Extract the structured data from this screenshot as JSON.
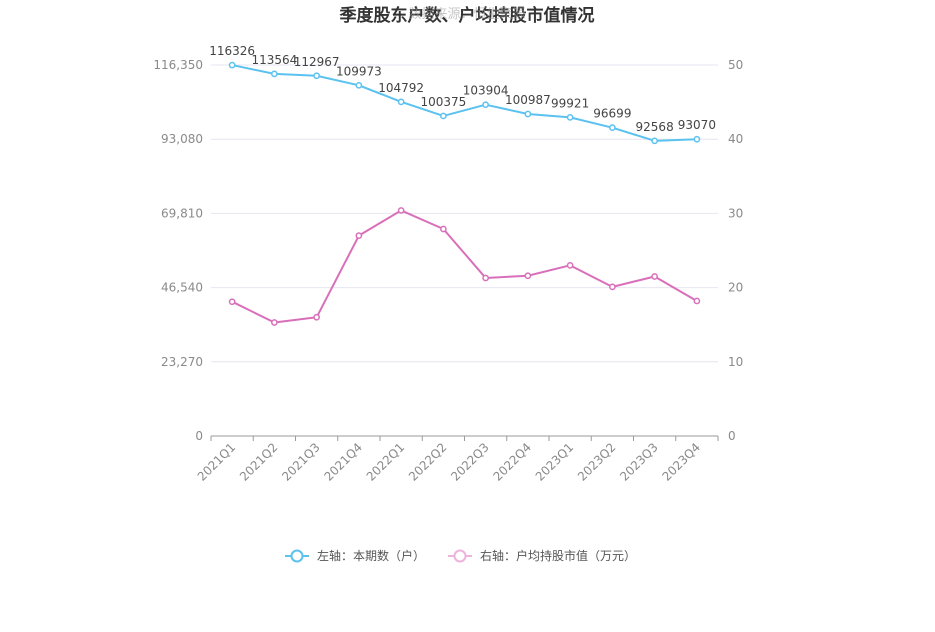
{
  "chart_data": {
    "type": "line",
    "title": "季度股东户数、户均持股市值情况",
    "watermark": "数据来源：恒生聚源",
    "categories": [
      "2021Q1",
      "2021Q2",
      "2021Q3",
      "2021Q4",
      "2022Q1",
      "2022Q2",
      "2022Q3",
      "2022Q4",
      "2023Q1",
      "2023Q2",
      "2023Q3",
      "2023Q4"
    ],
    "left_axis": {
      "ticks": [
        "0",
        "23,270",
        "46,540",
        "69,810",
        "93,080",
        "116,350"
      ],
      "ylim": [
        0,
        116350
      ]
    },
    "right_axis": {
      "ticks": [
        "0",
        "10",
        "20",
        "30",
        "40",
        "50"
      ],
      "ylim": [
        0,
        50
      ]
    },
    "series": [
      {
        "name": "左轴：本期数（户）",
        "axis": "left",
        "color": "#5bc2f0",
        "values": [
          116326,
          113564,
          112967,
          109973,
          104792,
          100375,
          103904,
          100987,
          99921,
          96699,
          92568,
          93070
        ],
        "labels": [
          "116326",
          "113564",
          "112967",
          "109973",
          "104792",
          "100375",
          "103904",
          "100987",
          "99921",
          "96699",
          "92568",
          "93070"
        ]
      },
      {
        "name": "右轴：户均持股市值（万元）",
        "axis": "right",
        "color": "#d96fba",
        "values": [
          18.1,
          15.3,
          16.0,
          27.0,
          30.4,
          27.9,
          21.3,
          21.6,
          23.0,
          20.1,
          21.5,
          18.2
        ]
      }
    ],
    "grid": true,
    "legend": "bottom-center"
  }
}
